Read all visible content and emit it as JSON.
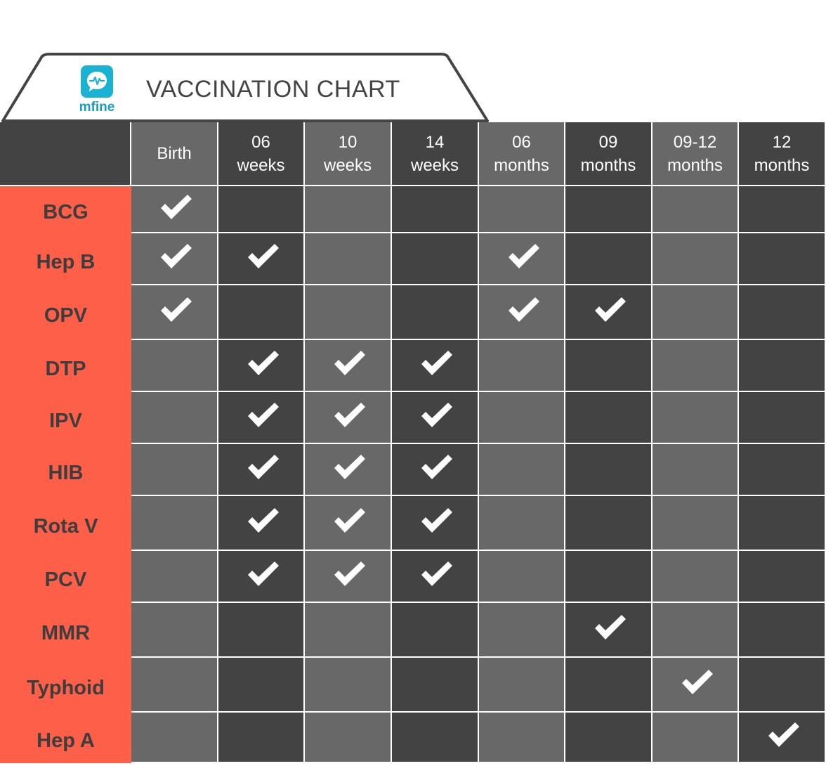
{
  "header": {
    "logo_text": "mfine",
    "title": "VACCINATION CHART"
  },
  "colors": {
    "accent": "#fe5f48",
    "light_cell": "#686868",
    "dark_cell": "#434343",
    "check": "#ffffff",
    "logo": "#1ab2d3"
  },
  "chart_data": {
    "type": "table",
    "title": "VACCINATION CHART",
    "columns": [
      "Birth",
      "06\nweeks",
      "10\nweeks",
      "14\nweeks",
      "06\nmonths",
      "09\nmonths",
      "09-12\nmonths",
      "12\nmonths"
    ],
    "rows": [
      {
        "vaccine": "BCG",
        "given": [
          1,
          0,
          0,
          0,
          0,
          0,
          0,
          0
        ]
      },
      {
        "vaccine": "Hep B",
        "given": [
          1,
          1,
          0,
          0,
          1,
          0,
          0,
          0
        ]
      },
      {
        "vaccine": "OPV",
        "given": [
          1,
          0,
          0,
          0,
          1,
          1,
          0,
          0
        ]
      },
      {
        "vaccine": "DTP",
        "given": [
          0,
          1,
          1,
          1,
          0,
          0,
          0,
          0
        ]
      },
      {
        "vaccine": "IPV",
        "given": [
          0,
          1,
          1,
          1,
          0,
          0,
          0,
          0
        ]
      },
      {
        "vaccine": "HIB",
        "given": [
          0,
          1,
          1,
          1,
          0,
          0,
          0,
          0
        ]
      },
      {
        "vaccine": "Rota V",
        "given": [
          0,
          1,
          1,
          1,
          0,
          0,
          0,
          0
        ]
      },
      {
        "vaccine": "PCV",
        "given": [
          0,
          1,
          1,
          1,
          0,
          0,
          0,
          0
        ]
      },
      {
        "vaccine": "MMR",
        "given": [
          0,
          0,
          0,
          0,
          0,
          1,
          0,
          0
        ]
      },
      {
        "vaccine": "Typhoid",
        "given": [
          0,
          0,
          0,
          0,
          0,
          0,
          1,
          0
        ]
      },
      {
        "vaccine": "Hep A",
        "given": [
          0,
          0,
          0,
          0,
          0,
          0,
          0,
          1
        ]
      }
    ]
  }
}
